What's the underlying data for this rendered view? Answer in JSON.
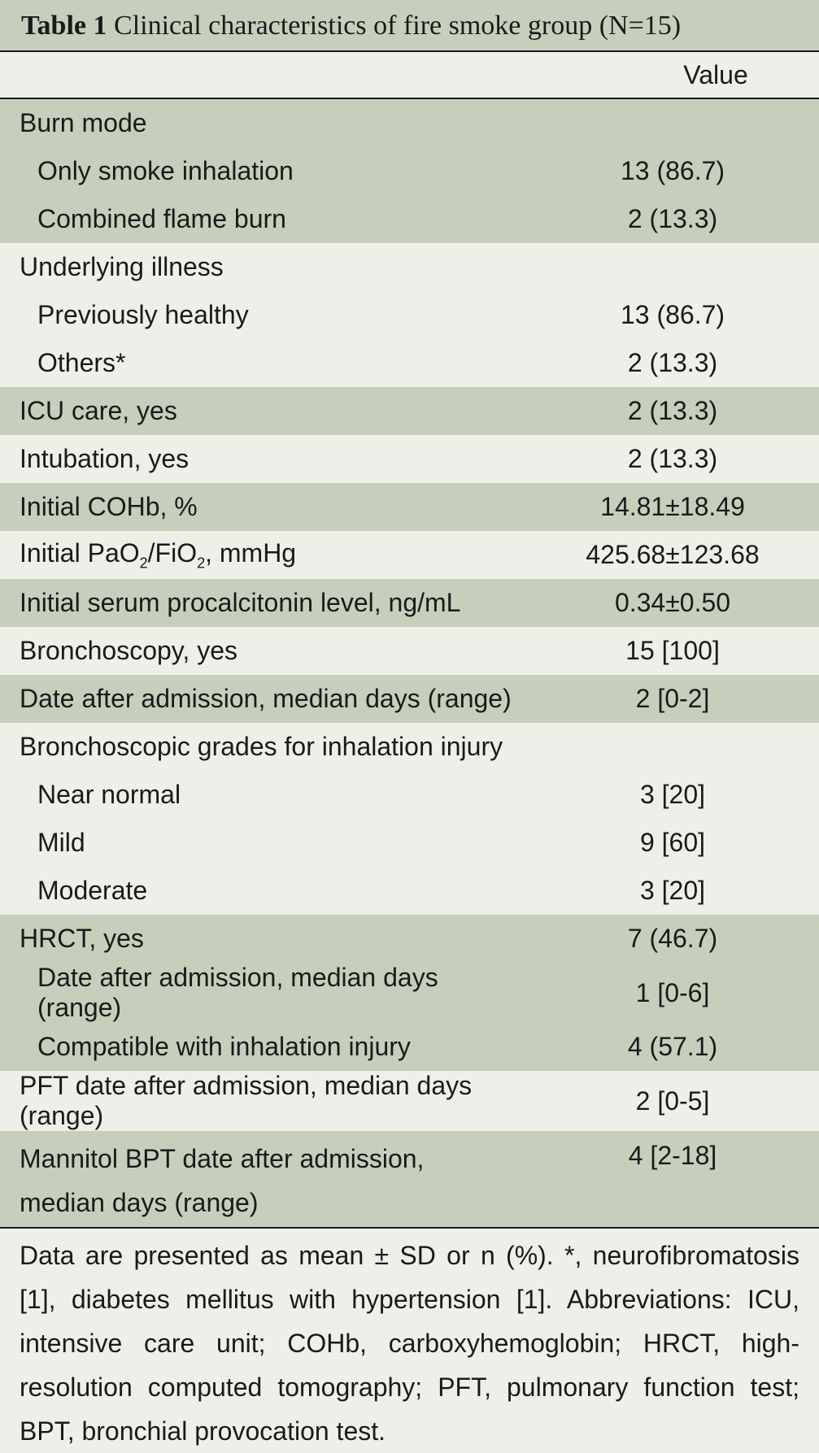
{
  "title": {
    "label": "Table 1",
    "text": "Clinical characteristics of fire smoke group (N=15)"
  },
  "header": {
    "value": "Value"
  },
  "rows": [
    {
      "label": "Burn mode",
      "value": "",
      "indent": false,
      "shade": "green"
    },
    {
      "label": "Only smoke inhalation",
      "value": "13 (86.7)",
      "indent": true,
      "shade": "green"
    },
    {
      "label": "Combined flame burn",
      "value": "2 (13.3)",
      "indent": true,
      "shade": "green"
    },
    {
      "label": "Underlying illness",
      "value": "",
      "indent": false,
      "shade": "light"
    },
    {
      "label": "Previously healthy",
      "value": "13 (86.7)",
      "indent": true,
      "shade": "light"
    },
    {
      "label": "Others*",
      "value": "2 (13.3)",
      "indent": true,
      "shade": "light"
    },
    {
      "label": "ICU care, yes",
      "value": "2 (13.3)",
      "indent": false,
      "shade": "green"
    },
    {
      "label": "Intubation, yes",
      "value": "2 (13.3)",
      "indent": false,
      "shade": "light"
    },
    {
      "label": "Initial COHb, %",
      "value": "14.81±18.49",
      "indent": false,
      "shade": "green"
    },
    {
      "label": "Initial PaO<sub>2</sub>/FiO<sub>2</sub>, mmHg",
      "value": "425.68±123.68",
      "indent": false,
      "shade": "light"
    },
    {
      "label": "Initial serum procalcitonin level, ng/mL",
      "value": "0.34±0.50",
      "indent": false,
      "shade": "green"
    },
    {
      "label": "Bronchoscopy, yes",
      "value": "15 [100]",
      "indent": false,
      "shade": "light"
    },
    {
      "label": "Date after admission, median days (range)",
      "value": "2 [0-2]",
      "indent": false,
      "shade": "green"
    },
    {
      "label": "Bronchoscopic grades for inhalation injury",
      "value": "",
      "indent": false,
      "shade": "light"
    },
    {
      "label": "Near normal",
      "value": "3 [20]",
      "indent": true,
      "shade": "light"
    },
    {
      "label": "Mild",
      "value": "9 [60]",
      "indent": true,
      "shade": "light"
    },
    {
      "label": "Moderate",
      "value": "3 [20]",
      "indent": true,
      "shade": "light"
    },
    {
      "label": "HRCT, yes",
      "value": "7 (46.7)",
      "indent": false,
      "shade": "green"
    },
    {
      "label": "Date after admission, median days (range)",
      "value": "1 [0-6]",
      "indent": true,
      "shade": "green"
    },
    {
      "label": "Compatible with inhalation injury",
      "value": "4 (57.1)",
      "indent": true,
      "shade": "green"
    },
    {
      "label": "PFT date after admission, median days (range)",
      "value": "2 [0-5]",
      "indent": false,
      "shade": "light"
    },
    {
      "label": "Mannitol BPT date after admission, median days (range)",
      "value": "4 [2-18]",
      "indent": false,
      "shade": "green",
      "tall": true
    }
  ],
  "footnote": "Data are presented as mean ± SD or n (%). *, neurofibromatosis [1], diabetes mellitus with hypertension [1]. Abbreviations: ICU, intensive care unit; COHb, carboxyhemoglobin; HRCT, high-resolution computed tomography; PFT, pulmonary function test; BPT, bronchial provocation test."
}
